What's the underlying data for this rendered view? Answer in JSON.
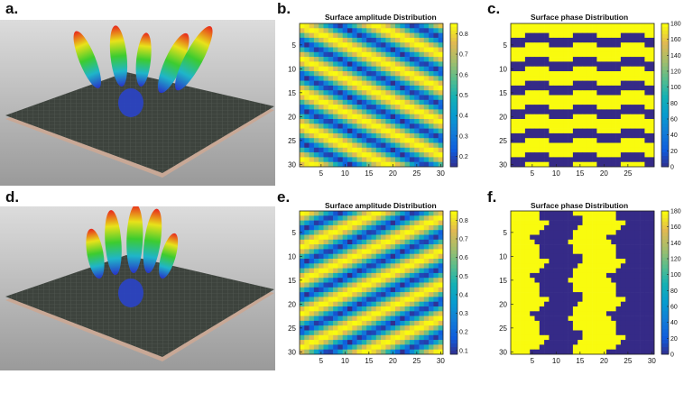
{
  "figure": {
    "panel_labels": [
      "a.",
      "b.",
      "c.",
      "d.",
      "e.",
      "f."
    ]
  },
  "colors": {
    "yellow": "#F9FB0E",
    "navy": "#2A1B8C",
    "scene_sky_top": "#d9d9d9",
    "scene_sky_bottom": "#9a9a9a",
    "ground": "#3c423c"
  },
  "chart_data": [
    {
      "id": "b",
      "type": "heatmap",
      "title": "Surface amplitude Distribution",
      "grid": [
        30,
        30
      ],
      "x_ticks": [
        "5",
        "10",
        "15",
        "20",
        "25",
        "30"
      ],
      "y_ticks": [
        "5",
        "10",
        "15",
        "20",
        "25",
        "30"
      ],
      "colorbar_ticks": [
        "0.2",
        "0.3",
        "0.4",
        "0.5",
        "0.6",
        "0.7",
        "0.8"
      ],
      "colorbar_range": [
        0.15,
        0.85
      ],
      "pattern": "diagonal stripes descending to the right",
      "stripe_period_cells": 7,
      "stripe_direction": "down-right"
    },
    {
      "id": "c",
      "type": "heatmap",
      "title": "Surface phase Distribution",
      "grid": [
        30,
        30
      ],
      "x_ticks": [
        "5",
        "10",
        "15",
        "20",
        "25"
      ],
      "y_ticks": [
        "5",
        "10",
        "15",
        "20",
        "25",
        "30"
      ],
      "colorbar_ticks": [
        "0",
        "20",
        "40",
        "60",
        "80",
        "100",
        "120",
        "140",
        "160",
        "180"
      ],
      "colorbar_range": [
        0,
        180
      ],
      "values_present": [
        0,
        180
      ],
      "pattern": "horizontal binary bands with stepped edges"
    },
    {
      "id": "e",
      "type": "heatmap",
      "title": "Surface amplitude Distribution",
      "grid": [
        30,
        30
      ],
      "x_ticks": [
        "5",
        "10",
        "15",
        "20",
        "25",
        "30"
      ],
      "y_ticks": [
        "5",
        "10",
        "15",
        "20",
        "25",
        "30"
      ],
      "colorbar_ticks": [
        "0.1",
        "0.2",
        "0.3",
        "0.4",
        "0.5",
        "0.6",
        "0.7",
        "0.8"
      ],
      "colorbar_range": [
        0.08,
        0.85
      ],
      "pattern": "diagonal stripes ascending to the right",
      "stripe_period_cells": 7,
      "stripe_direction": "up-right"
    },
    {
      "id": "f",
      "type": "heatmap",
      "title": "Surface phase Distribution",
      "grid": [
        30,
        30
      ],
      "x_ticks": [
        "5",
        "10",
        "15",
        "20",
        "25",
        "30"
      ],
      "y_ticks": [
        "5",
        "10",
        "15",
        "20",
        "25",
        "30"
      ],
      "colorbar_ticks": [
        "0",
        "20",
        "40",
        "60",
        "80",
        "100",
        "120",
        "140",
        "160",
        "180"
      ],
      "colorbar_range": [
        0,
        180
      ],
      "values_present": [
        0,
        180
      ],
      "pattern": "vertical binary bands with zig-zag edges"
    }
  ]
}
